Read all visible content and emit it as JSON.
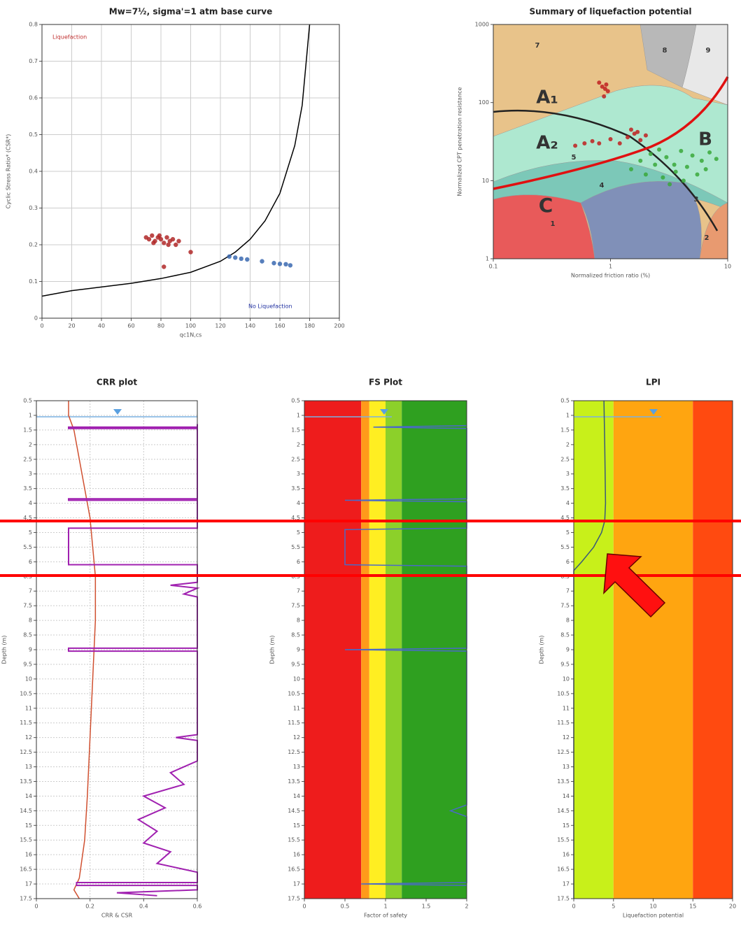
{
  "chart_data": [
    {
      "type": "scatter",
      "title": "Mw=7½, sigma'=1 atm base curve",
      "xlabel": "qc1N,cs",
      "ylabel": "Cyclic Stress Ratio* (CSR*)",
      "xlim": [
        0,
        200
      ],
      "xticks": [
        0,
        20,
        40,
        60,
        80,
        100,
        120,
        140,
        160,
        180,
        200
      ],
      "ylim": [
        0,
        0.8
      ],
      "yticks": [
        0,
        0.1,
        0.2,
        0.3,
        0.4,
        0.5,
        0.6,
        0.7,
        0.8
      ],
      "grid": true,
      "annotations": [
        {
          "text": "Liquefaction",
          "color": "#c03030"
        },
        {
          "text": "No Liquefaction",
          "color": "#2030a0"
        }
      ],
      "series": [
        {
          "type": "line",
          "color": "#000000",
          "x": [
            0,
            20,
            40,
            60,
            80,
            100,
            120,
            130,
            140,
            150,
            160,
            170,
            175,
            180
          ],
          "values": [
            0.06,
            0.075,
            0.085,
            0.095,
            0.108,
            0.125,
            0.155,
            0.18,
            0.215,
            0.265,
            0.34,
            0.47,
            0.58,
            0.8
          ]
        },
        {
          "type": "scatter",
          "color": "#b02828",
          "x": [
            70,
            72,
            74,
            76,
            78,
            80,
            82,
            84,
            86,
            88,
            90,
            92,
            75,
            79,
            85,
            100,
            82
          ],
          "values": [
            0.22,
            0.215,
            0.225,
            0.21,
            0.22,
            0.215,
            0.205,
            0.22,
            0.21,
            0.215,
            0.2,
            0.21,
            0.205,
            0.225,
            0.2,
            0.18,
            0.14
          ]
        },
        {
          "type": "scatter",
          "color": "#3a68b0",
          "x": [
            126,
            130,
            134,
            138,
            148,
            156,
            160,
            164,
            167
          ],
          "values": [
            0.168,
            0.165,
            0.162,
            0.16,
            0.155,
            0.15,
            0.148,
            0.147,
            0.144
          ]
        }
      ]
    },
    {
      "type": "scatter",
      "title": "Summary of liquefaction potential",
      "xlabel": "Normalized friction ratio (%)",
      "ylabel": "Normalized CPT penetration resistance",
      "xscale": "log",
      "yscale": "log",
      "xlim": [
        0.1,
        10
      ],
      "xticks": [
        0.1,
        1,
        10
      ],
      "ylim": [
        1,
        1000
      ],
      "yticks": [
        1,
        10,
        100,
        1000
      ],
      "zone_labels": [
        "7",
        "8",
        "9",
        "A₁",
        "A₂",
        "B",
        "C",
        "5",
        "4",
        "3",
        "2",
        "1"
      ],
      "series": [
        {
          "type": "scatter",
          "color": "#c02020",
          "x": [
            0.8,
            0.85,
            0.9,
            0.95,
            0.88,
            0.92,
            0.5,
            0.6,
            0.7,
            0.8,
            1.0,
            1.2,
            1.4,
            1.6,
            1.8,
            2.0,
            1.5,
            1.7
          ],
          "values": [
            180,
            160,
            150,
            140,
            120,
            170,
            28,
            30,
            32,
            30,
            34,
            30,
            36,
            40,
            33,
            38,
            45,
            42
          ]
        },
        {
          "type": "scatter",
          "color": "#3aa83a",
          "x": [
            1.5,
            1.8,
            2.2,
            2.6,
            3.0,
            3.5,
            4.0,
            5.0,
            6.0,
            7.0,
            8.0,
            2.0,
            2.8,
            3.6,
            4.5,
            5.5,
            6.5,
            3.2,
            4.2,
            2.4
          ],
          "values": [
            14,
            18,
            22,
            25,
            20,
            16,
            24,
            21,
            18,
            23,
            19,
            12,
            11,
            13,
            15,
            12,
            14,
            9,
            10,
            16
          ]
        }
      ]
    },
    {
      "type": "line",
      "title": "CRR plot",
      "xlabel": "CRR & CSR",
      "ylabel": "Depth (m)",
      "y_inverted": true,
      "xlim": [
        0,
        0.6
      ],
      "xticks": [
        0,
        0.2,
        0.4,
        0.6
      ],
      "ylim": [
        0.5,
        17.5
      ],
      "yticks": [
        0.5,
        1,
        1.5,
        2,
        2.5,
        3,
        3.5,
        4,
        4.5,
        5,
        5.5,
        6,
        6.5,
        7,
        7.5,
        8,
        8.5,
        9,
        9.5,
        10,
        10.5,
        11,
        11.5,
        12,
        12.5,
        13,
        13.5,
        14,
        14.5,
        15,
        15.5,
        16,
        16.5,
        17,
        17.5
      ],
      "grid": true,
      "series": [
        {
          "color": "#d05030",
          "values": [
            0.12,
            0.12,
            0.14,
            0.16,
            0.18,
            0.2,
            0.21,
            0.22,
            0.22,
            0.21,
            0.2,
            0.19,
            0.18,
            0.16,
            0.14,
            0.16
          ],
          "y": [
            0.5,
            1,
            1.5,
            2.5,
            3.5,
            4.5,
            5.5,
            6.5,
            8,
            10,
            12,
            14,
            15.5,
            16.8,
            17.2,
            17.5
          ]
        },
        {
          "color": "#a020b0",
          "values": [
            0.6,
            0.6,
            0.12,
            0.12,
            0.6,
            0.6,
            0.12,
            0.12,
            0.6,
            0.6,
            0.12,
            0.12,
            0.6,
            0.6,
            0.5,
            0.6,
            0.55,
            0.6,
            0.6,
            0.12,
            0.12,
            0.6,
            0.6,
            0.52,
            0.6,
            0.6,
            0.5,
            0.55,
            0.4,
            0.48,
            0.38,
            0.45,
            0.4,
            0.5,
            0.45,
            0.6,
            0.6,
            0.15,
            0.15,
            0.6,
            0.6,
            0.3,
            0.45
          ],
          "y": [
            1.3,
            1.4,
            1.4,
            1.45,
            1.45,
            3.85,
            3.85,
            3.9,
            3.9,
            4.85,
            4.85,
            6.1,
            6.1,
            6.7,
            6.8,
            6.9,
            7.1,
            7.2,
            8.95,
            8.95,
            9.05,
            9.05,
            11.9,
            12.0,
            12.1,
            12.8,
            13.2,
            13.6,
            14.0,
            14.4,
            14.8,
            15.2,
            15.6,
            15.9,
            16.3,
            16.6,
            16.95,
            16.95,
            17.05,
            17.05,
            17.2,
            17.3,
            17.4
          ]
        }
      ]
    },
    {
      "type": "line",
      "title": "FS Plot",
      "xlabel": "Factor of safety",
      "ylabel": "Depth (m)",
      "y_inverted": true,
      "xlim": [
        0,
        2
      ],
      "xticks": [
        0,
        0.5,
        1,
        1.5,
        2
      ],
      "ylim": [
        0.5,
        17.5
      ],
      "yticks": [
        0.5,
        1,
        1.5,
        2,
        2.5,
        3,
        3.5,
        4,
        4.5,
        5,
        5.5,
        6,
        6.5,
        7,
        7.5,
        8,
        8.5,
        9,
        9.5,
        10,
        10.5,
        11,
        11.5,
        12,
        12.5,
        13,
        13.5,
        14,
        14.5,
        15,
        15.5,
        16,
        16.5,
        17,
        17.5
      ],
      "bands": [
        {
          "from": 0,
          "to": 0.7,
          "color": "#ee1c1c"
        },
        {
          "from": 0.7,
          "to": 0.8,
          "color": "#ff9a1a"
        },
        {
          "from": 0.8,
          "to": 1,
          "color": "#ffee22"
        },
        {
          "from": 1,
          "to": 1.2,
          "color": "#8cd02a"
        },
        {
          "from": 1.2,
          "to": 2,
          "color": "#2fa020"
        }
      ],
      "series": [
        {
          "color": "#4a6ac8",
          "values": [
            2,
            0.85,
            2,
            2,
            0.5,
            2,
            2,
            0.5,
            0.5,
            2,
            2,
            0.5,
            2,
            2,
            1.8,
            2,
            2,
            0.7,
            2
          ],
          "y": [
            1.35,
            1.4,
            1.45,
            3.85,
            3.9,
            3.95,
            4.85,
            4.9,
            6.1,
            6.15,
            8.95,
            9.0,
            9.05,
            14.3,
            14.5,
            14.7,
            16.95,
            17.0,
            17.05
          ]
        }
      ]
    },
    {
      "type": "line",
      "title": "LPI",
      "xlabel": "Liquefaction potential",
      "ylabel": "Depth (m)",
      "y_inverted": true,
      "xlim": [
        0,
        20
      ],
      "xticks": [
        0,
        5,
        10,
        15,
        20
      ],
      "ylim": [
        0.5,
        17.5
      ],
      "yticks": [
        0.5,
        1,
        1.5,
        2,
        2.5,
        3,
        3.5,
        4,
        4.5,
        5,
        5.5,
        6,
        6.5,
        7,
        7.5,
        8,
        8.5,
        9,
        9.5,
        10,
        10.5,
        11,
        11.5,
        12,
        12.5,
        13,
        13.5,
        14,
        14.5,
        15,
        15.5,
        16,
        16.5,
        17,
        17.5
      ],
      "bands": [
        {
          "from": 0,
          "to": 5,
          "color": "#c8f01a"
        },
        {
          "from": 5,
          "to": 15,
          "color": "#ffa510"
        },
        {
          "from": 15,
          "to": 20,
          "color": "#ff4a10"
        }
      ],
      "series": [
        {
          "color": "#3a5a7a",
          "values": [
            3.8,
            3.9,
            4,
            3.9,
            3.5,
            2.5,
            1,
            0,
            0
          ],
          "y": [
            0.5,
            2,
            4,
            4.6,
            5.0,
            5.5,
            6.0,
            6.3,
            17.5
          ]
        }
      ]
    }
  ]
}
